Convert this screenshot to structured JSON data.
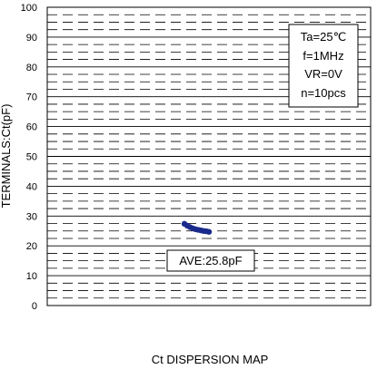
{
  "chart_data": {
    "type": "scatter",
    "title": "",
    "xlabel": "Ct DISPERSION MAP",
    "ylabel": "TERMINALS:Ct(pF)",
    "ylim": [
      0,
      100
    ],
    "yticks": [
      "0",
      "10",
      "20",
      "30",
      "40",
      "50",
      "60",
      "70",
      "80",
      "90",
      "100"
    ],
    "grid": true,
    "conditions": [
      "Ta=25℃",
      "f=1MHz",
      "VR=0V",
      "n=10pcs"
    ],
    "average_label": "AVE:25.8pF",
    "marker_color": "#1a2a8c",
    "series": [
      {
        "values": [
          27.4,
          26.8,
          26.3,
          25.9,
          25.6,
          25.4,
          25.2,
          25.0,
          24.9,
          24.7
        ]
      }
    ]
  }
}
